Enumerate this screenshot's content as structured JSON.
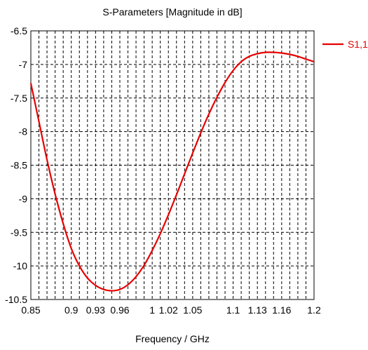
{
  "chart_data": {
    "type": "line",
    "title": "S-Parameters [Magnitude in dB]",
    "xlabel": "Frequency / GHz",
    "ylabel": "",
    "xlim": [
      0.85,
      1.2
    ],
    "ylim": [
      -10.5,
      -6.5
    ],
    "grid": true,
    "legend_position": "top-right",
    "x_ticks": [
      0.85,
      0.9,
      0.93,
      0.96,
      1,
      1.02,
      1.05,
      1.1,
      1.13,
      1.16,
      1.2
    ],
    "x_tick_labels": [
      "0.85",
      "0.9",
      "0.93",
      "0.96",
      "1",
      "1.02",
      "1.05",
      "1.1",
      "1.13",
      "1.16",
      "1.2"
    ],
    "y_ticks": [
      -6.5,
      -7,
      -7.5,
      -8,
      -8.5,
      -9,
      -9.5,
      -10,
      -10.5
    ],
    "y_tick_labels": [
      "-6.5",
      "-7",
      "-7.5",
      "-8",
      "-8.5",
      "-9",
      "-9.5",
      "-10",
      "-10.5"
    ],
    "series": [
      {
        "name": "S1,1",
        "color": "#e60000",
        "x": [
          0.85,
          0.86,
          0.87,
          0.88,
          0.89,
          0.9,
          0.91,
          0.92,
          0.93,
          0.94,
          0.95,
          0.96,
          0.97,
          0.98,
          0.99,
          1.0,
          1.01,
          1.02,
          1.03,
          1.04,
          1.05,
          1.06,
          1.07,
          1.08,
          1.09,
          1.1,
          1.11,
          1.12,
          1.13,
          1.14,
          1.15,
          1.16,
          1.17,
          1.18,
          1.19,
          1.2
        ],
        "y": [
          -7.28,
          -7.85,
          -8.42,
          -8.93,
          -9.37,
          -9.74,
          -10.0,
          -10.18,
          -10.29,
          -10.35,
          -10.37,
          -10.35,
          -10.28,
          -10.16,
          -9.99,
          -9.77,
          -9.52,
          -9.24,
          -8.94,
          -8.63,
          -8.32,
          -8.02,
          -7.74,
          -7.49,
          -7.27,
          -7.09,
          -6.96,
          -6.88,
          -6.84,
          -6.82,
          -6.82,
          -6.83,
          -6.85,
          -6.88,
          -6.92,
          -6.96
        ]
      }
    ]
  }
}
